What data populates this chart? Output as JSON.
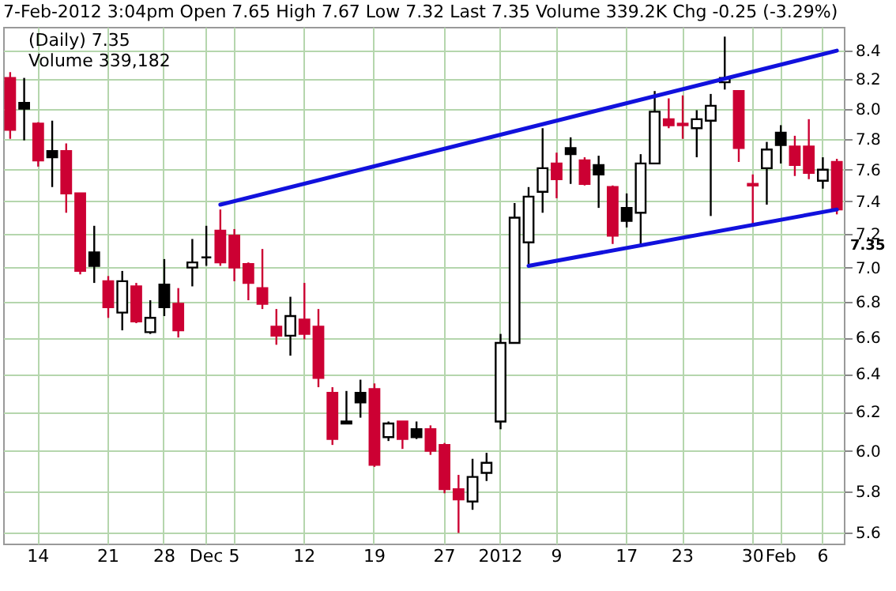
{
  "chart_data": {
    "type": "candlestick",
    "subtitle": "7-Feb-2012 3:04pm   Open 7.65   High 7.67   Low 7.32   Last 7.35   Volume 339.2K   Chg -0.25 (-3.29%)",
    "annotations": [
      "(Daily) 7.35",
      "Volume 339,182",
      "7.35"
    ],
    "categories": [
      null,
      null,
      "14",
      null,
      null,
      null,
      null,
      "21",
      null,
      null,
      null,
      "28",
      null,
      null,
      "Dec",
      null,
      "5",
      null,
      null,
      null,
      null,
      "12",
      null,
      null,
      null,
      null,
      "19",
      null,
      null,
      null,
      null,
      "27",
      null,
      null,
      null,
      "2012",
      null,
      null,
      null,
      "9",
      null,
      null,
      null,
      null,
      "17",
      null,
      null,
      null,
      "23",
      null,
      null,
      null,
      null,
      "30",
      null,
      "Feb",
      null,
      null,
      "6",
      null
    ],
    "ohlc": [
      [
        8.21,
        8.25,
        7.8,
        7.86
      ],
      [
        8.04,
        8.21,
        7.79,
        8.0
      ],
      [
        7.9,
        7.91,
        7.62,
        7.66
      ],
      [
        7.72,
        7.92,
        7.49,
        7.68
      ],
      [
        7.72,
        7.77,
        7.33,
        7.45
      ],
      [
        7.45,
        7.45,
        6.96,
        6.98
      ],
      [
        7.09,
        7.25,
        6.91,
        7.01
      ],
      [
        6.92,
        6.95,
        6.71,
        6.77
      ],
      [
        6.74,
        6.98,
        6.64,
        6.92
      ],
      [
        6.89,
        6.91,
        6.68,
        6.69
      ],
      [
        6.63,
        6.81,
        6.62,
        6.71
      ],
      [
        6.9,
        7.05,
        6.72,
        6.77
      ],
      [
        6.79,
        6.88,
        6.6,
        6.64
      ],
      [
        7.0,
        7.17,
        6.89,
        7.03
      ],
      [
        7.06,
        7.25,
        7.01,
        7.06
      ],
      [
        7.22,
        7.35,
        7.01,
        7.03
      ],
      [
        7.19,
        7.23,
        6.92,
        7.0
      ],
      [
        7.02,
        7.03,
        6.81,
        6.91
      ],
      [
        6.88,
        7.11,
        6.76,
        6.79
      ],
      [
        6.66,
        6.76,
        6.56,
        6.61
      ],
      [
        6.61,
        6.83,
        6.5,
        6.72
      ],
      [
        6.7,
        6.91,
        6.59,
        6.62
      ],
      [
        6.66,
        6.76,
        6.33,
        6.38
      ],
      [
        6.3,
        6.33,
        6.03,
        6.06
      ],
      [
        6.14,
        6.31,
        6.14,
        6.15
      ],
      [
        6.3,
        6.37,
        6.17,
        6.25
      ],
      [
        6.32,
        6.35,
        5.92,
        5.93
      ],
      [
        6.07,
        6.15,
        6.05,
        6.14
      ],
      [
        6.15,
        6.15,
        6.01,
        6.06
      ],
      [
        6.11,
        6.15,
        6.06,
        6.07
      ],
      [
        6.11,
        6.13,
        5.98,
        6.0
      ],
      [
        6.03,
        6.04,
        5.79,
        5.81
      ],
      [
        5.81,
        5.88,
        5.6,
        5.76
      ],
      [
        5.75,
        5.96,
        5.71,
        5.87
      ],
      [
        5.89,
        5.99,
        5.85,
        5.94
      ],
      [
        6.15,
        6.62,
        6.11,
        6.57
      ],
      [
        6.57,
        7.39,
        6.57,
        7.3
      ],
      [
        7.15,
        7.49,
        7.02,
        7.43
      ],
      [
        7.46,
        7.87,
        7.33,
        7.61
      ],
      [
        7.64,
        7.71,
        7.42,
        7.54
      ],
      [
        7.74,
        7.81,
        7.51,
        7.7
      ],
      [
        7.66,
        7.68,
        7.5,
        7.51
      ],
      [
        7.63,
        7.69,
        7.36,
        7.57
      ],
      [
        7.49,
        7.5,
        7.14,
        7.19
      ],
      [
        7.36,
        7.45,
        7.24,
        7.28
      ],
      [
        7.33,
        7.7,
        7.13,
        7.64
      ],
      [
        7.64,
        8.12,
        7.64,
        7.98
      ],
      [
        7.93,
        8.07,
        7.87,
        7.89
      ],
      [
        7.9,
        8.09,
        7.8,
        7.89
      ],
      [
        7.87,
        7.99,
        7.68,
        7.93
      ],
      [
        7.92,
        8.1,
        7.31,
        8.02
      ],
      [
        8.18,
        8.5,
        8.13,
        8.21
      ],
      [
        8.12,
        8.12,
        7.65,
        7.74
      ],
      [
        7.51,
        7.57,
        7.25,
        7.5
      ],
      [
        7.61,
        7.78,
        7.38,
        7.73
      ],
      [
        7.84,
        7.89,
        7.64,
        7.76
      ],
      [
        7.75,
        7.82,
        7.56,
        7.63
      ],
      [
        7.75,
        7.93,
        7.54,
        7.58
      ],
      [
        7.53,
        7.68,
        7.48,
        7.6
      ],
      [
        7.65,
        7.67,
        7.32,
        7.35
      ]
    ],
    "colors": [
      "#cc0033",
      "#000000",
      "#cc0033",
      "#000000",
      "#cc0033",
      "#cc0033",
      "#000000",
      "#cc0033",
      "#000000",
      "#cc0033",
      "#000000",
      "#000000",
      "#cc0033",
      "#000000",
      "#000000",
      "#cc0033",
      "#cc0033",
      "#cc0033",
      "#cc0033",
      "#cc0033",
      "#000000",
      "#cc0033",
      "#cc0033",
      "#cc0033",
      "#000000",
      "#000000",
      "#cc0033",
      "#000000",
      "#cc0033",
      "#000000",
      "#cc0033",
      "#cc0033",
      "#cc0033",
      "#000000",
      "#000000",
      "#000000",
      "#000000",
      "#000000",
      "#000000",
      "#cc0033",
      "#000000",
      "#cc0033",
      "#000000",
      "#cc0033",
      "#000000",
      "#000000",
      "#000000",
      "#cc0033",
      "#cc0033",
      "#000000",
      "#000000",
      "#000000",
      "#cc0033",
      "#cc0033",
      "#000000",
      "#000000",
      "#cc0033",
      "#cc0033",
      "#000000",
      "#cc0033"
    ],
    "series": [
      {
        "type": "line",
        "color": "#1111dd",
        "values": [
          null,
          null,
          null,
          null,
          null,
          null,
          null,
          null,
          null,
          null,
          null,
          null,
          null,
          null,
          null,
          7.38,
          null,
          null,
          null,
          null,
          null,
          null,
          null,
          null,
          null,
          null,
          null,
          null,
          null,
          null,
          null,
          null,
          null,
          null,
          null,
          null,
          null,
          null,
          null,
          null,
          null,
          null,
          null,
          null,
          null,
          null,
          null,
          null,
          null,
          null,
          null,
          null,
          null,
          null,
          null,
          null,
          null,
          null,
          null,
          8.4
        ]
      },
      {
        "type": "line",
        "color": "#1111dd",
        "values": [
          null,
          null,
          null,
          null,
          null,
          null,
          null,
          null,
          null,
          null,
          null,
          null,
          null,
          null,
          null,
          null,
          null,
          null,
          null,
          null,
          null,
          null,
          null,
          null,
          null,
          null,
          null,
          null,
          null,
          null,
          null,
          null,
          null,
          null,
          null,
          null,
          null,
          7.01,
          null,
          null,
          null,
          null,
          null,
          null,
          null,
          null,
          null,
          null,
          null,
          null,
          null,
          null,
          null,
          null,
          null,
          null,
          null,
          null,
          null,
          7.35
        ]
      }
    ],
    "log": true,
    "ylim": [
      5.55,
      8.57
    ],
    "yticks": [
      5.6,
      5.8,
      {
        "value": 6,
        "label": "6.0"
      },
      6.2,
      6.4,
      6.6,
      6.8,
      {
        "value": 7,
        "label": "7.0"
      },
      7.2,
      7.4,
      7.6,
      7.8,
      {
        "value": 8,
        "label": "8.0"
      },
      8.2,
      8.4
    ],
    "grid": true
  }
}
